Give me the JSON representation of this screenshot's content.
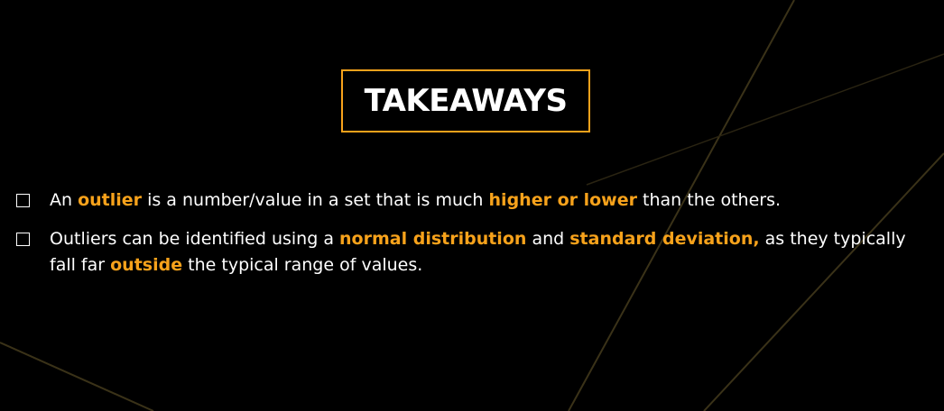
{
  "title": "TAKEAWAYS",
  "colors": {
    "accent": "#f7a21b",
    "background": "#000000",
    "text": "#ffffff"
  },
  "bullets": [
    {
      "icon": "checkbox-icon",
      "segments": [
        {
          "text": "An ",
          "highlight": false
        },
        {
          "text": "outlier",
          "highlight": true
        },
        {
          "text": " is a number/value in a set that is much ",
          "highlight": false
        },
        {
          "text": "higher or lower",
          "highlight": true
        },
        {
          "text": " than the others.",
          "highlight": false
        }
      ]
    },
    {
      "icon": "checkbox-icon",
      "segments": [
        {
          "text": "Outliers can be identified using a ",
          "highlight": false
        },
        {
          "text": "normal distribution",
          "highlight": true
        },
        {
          "text": " and ",
          "highlight": false
        },
        {
          "text": "standard deviation,",
          "highlight": true
        },
        {
          "text": " as they typically fall far ",
          "highlight": false
        },
        {
          "text": "outside",
          "highlight": true
        },
        {
          "text": " the typical range of values.",
          "highlight": false
        }
      ]
    }
  ]
}
